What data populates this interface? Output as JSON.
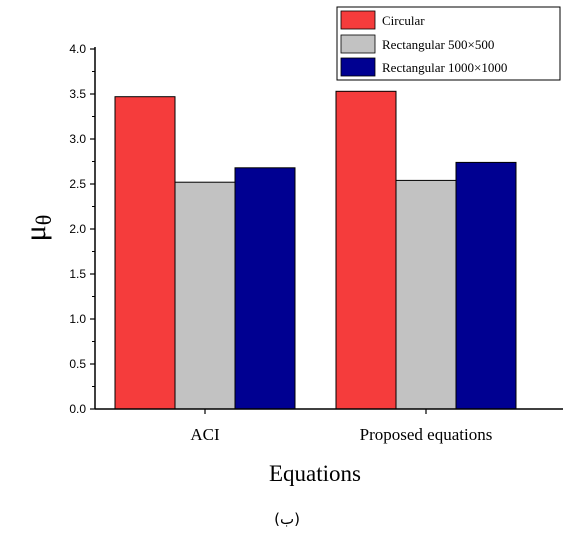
{
  "chart_data": {
    "type": "bar",
    "categories": [
      "ACI",
      "Proposed equations"
    ],
    "series": [
      {
        "name": "Circular",
        "values": [
          3.47,
          3.53
        ],
        "color": "#f53c3c"
      },
      {
        "name": "Rectangular 500×500",
        "values": [
          2.52,
          2.54
        ],
        "color": "#c2c2c2"
      },
      {
        "name": "Rectangular 1000×1000",
        "values": [
          2.68,
          2.74
        ],
        "color": "#000091"
      }
    ],
    "xlabel": "Equations",
    "ylabel": "μθ",
    "ylabel_main": "μ",
    "ylabel_sub": "θ",
    "ylim": [
      0,
      4.0
    ],
    "yticks": [
      "0.0",
      "0.5",
      "1.0",
      "1.5",
      "2.0",
      "2.5",
      "3.0",
      "3.5",
      "4.0"
    ],
    "grid": false,
    "legend_position": "top-right"
  },
  "caption": "(ب)"
}
